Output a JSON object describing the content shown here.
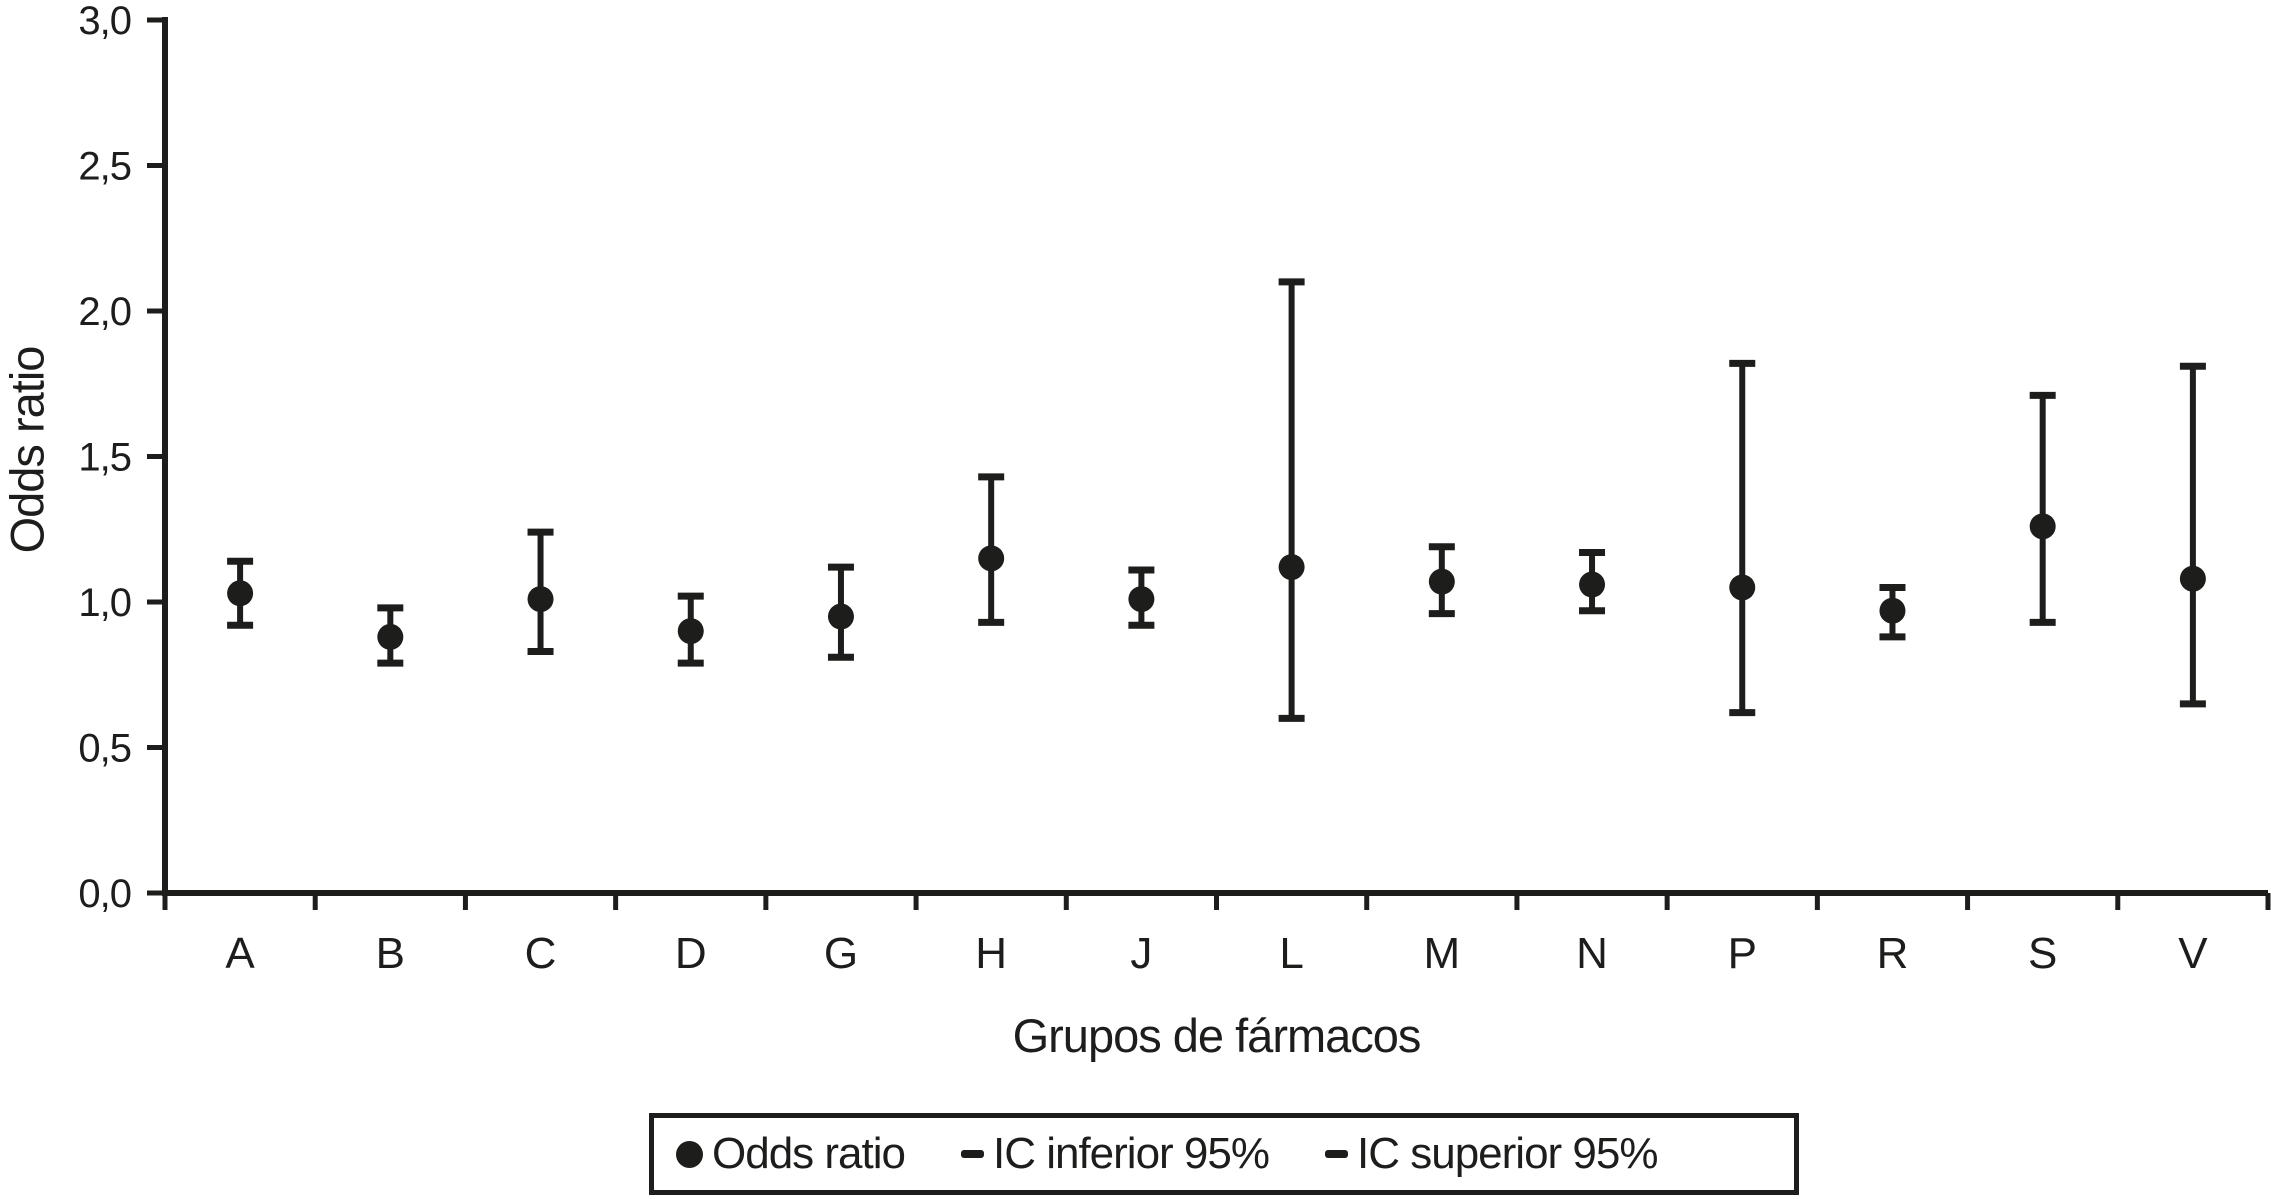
{
  "colors": {
    "ink": "#1d1d1b",
    "background": "#ffffff"
  },
  "chart_data": {
    "type": "scatter",
    "subtype": "points-with-95ci-error-bars",
    "title": "",
    "xlabel": "Grupos de fármacos",
    "ylabel": "Odds ratio",
    "ylim": [
      0.0,
      3.0
    ],
    "yticks": [
      0.0,
      0.5,
      1.0,
      1.5,
      2.0,
      2.5,
      3.0
    ],
    "ytick_labels": [
      "0,0",
      "0,5",
      "1,0",
      "1,5",
      "2,0",
      "2,5",
      "3,0"
    ],
    "decimal_separator": ",",
    "grid": false,
    "legend_position": "bottom-boxed",
    "categories": [
      "A",
      "B",
      "C",
      "D",
      "G",
      "H",
      "J",
      "L",
      "M",
      "N",
      "P",
      "R",
      "S",
      "V"
    ],
    "series": [
      {
        "name": "Odds ratio",
        "marker": "filled-circle",
        "values": [
          1.03,
          0.88,
          1.01,
          0.9,
          0.95,
          1.15,
          1.01,
          1.12,
          1.07,
          1.06,
          1.05,
          0.97,
          1.26,
          1.08
        ]
      },
      {
        "name": "IC inferior 95%",
        "marker": "dash",
        "values": [
          0.92,
          0.79,
          0.83,
          0.79,
          0.81,
          0.93,
          0.92,
          0.6,
          0.96,
          0.97,
          0.62,
          0.88,
          0.93,
          0.65
        ]
      },
      {
        "name": "IC superior 95%",
        "marker": "dash",
        "values": [
          1.14,
          0.98,
          1.24,
          1.02,
          1.12,
          1.43,
          1.11,
          2.1,
          1.19,
          1.17,
          1.82,
          1.05,
          1.71,
          1.81
        ]
      }
    ]
  }
}
